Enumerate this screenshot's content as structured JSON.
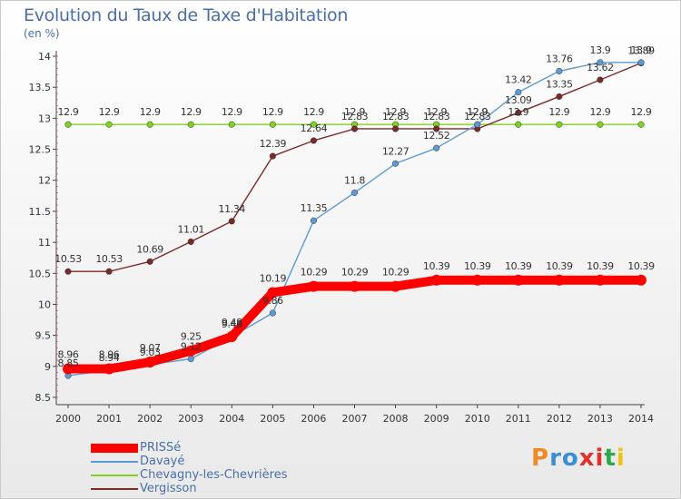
{
  "title": "Evolution du Taux de Taxe d'Habitation",
  "subtitle": "(en %)",
  "logo": {
    "text": "Proxiti",
    "colors": [
      "#f08a24",
      "#3a8fd0",
      "#3a8fd0",
      "#e0302a",
      "#e0302a",
      "#2ea84a",
      "#f4c20d"
    ]
  },
  "chart_data": {
    "type": "line",
    "title": "Evolution du Taux de Taxe d'Habitation",
    "subtitle": "(en %)",
    "xlabel": "",
    "ylabel": "",
    "x": [
      "2000",
      "2001",
      "2002",
      "2003",
      "2004",
      "2005",
      "2006",
      "2007",
      "2008",
      "2009",
      "2010",
      "2011",
      "2012",
      "2013",
      "2014"
    ],
    "ylim": [
      8.5,
      14
    ],
    "yticks": [
      "8.5",
      "9",
      "9.5",
      "10",
      "10.5",
      "11",
      "11.5",
      "12",
      "12.5",
      "13",
      "13.5",
      "14"
    ],
    "grid": false,
    "legend_position": "bottom-left",
    "series": [
      {
        "name": "PRISSé",
        "color": "#ff0000",
        "style": "thick",
        "values": [
          8.96,
          8.96,
          9.07,
          9.25,
          9.48,
          10.19,
          10.29,
          10.29,
          10.29,
          10.39,
          10.39,
          10.39,
          10.39,
          10.39,
          10.39
        ],
        "labels": [
          "8.96",
          "8.96",
          "9.07",
          "9.25",
          "9.48",
          "10.19",
          "10.29",
          "10.29",
          "10.29",
          "10.39",
          "10.39",
          "10.39",
          "10.39",
          "10.39",
          "10.39"
        ]
      },
      {
        "name": "Davayé",
        "color": "#5b9bd5",
        "style": "thin",
        "values": [
          8.85,
          8.94,
          9.03,
          9.12,
          9.48,
          9.86,
          11.35,
          11.8,
          12.27,
          12.52,
          12.9,
          13.42,
          13.76,
          13.9,
          13.9
        ],
        "labels": [
          "8.85",
          "8.94",
          "9.03",
          "9.12",
          "9.48",
          "9.86",
          "11.35",
          "11.8",
          "12.27",
          "12.52",
          "12.9",
          "13.42",
          "13.76",
          "13.9",
          "13.9"
        ]
      },
      {
        "name": "Chevagny-les-Chevrières",
        "color": "#7ed321",
        "style": "thin",
        "values": [
          12.9,
          12.9,
          12.9,
          12.9,
          12.9,
          12.9,
          12.9,
          12.9,
          12.9,
          12.9,
          12.9,
          12.9,
          12.9,
          12.9,
          12.9
        ],
        "labels": [
          "12.9",
          "12.9",
          "12.9",
          "12.9",
          "12.9",
          "12.9",
          "12.9",
          "12.9",
          "12.9",
          "12.9",
          "12.9",
          "12.9",
          "12.9",
          "12.9",
          "12.9"
        ]
      },
      {
        "name": "Vergisson",
        "color": "#7b2a2a",
        "style": "thin",
        "values": [
          10.53,
          10.53,
          10.69,
          11.01,
          11.34,
          12.39,
          12.64,
          12.83,
          12.83,
          12.83,
          12.83,
          13.09,
          13.35,
          13.62,
          13.89
        ],
        "labels": [
          "10.53",
          "10.53",
          "10.69",
          "11.01",
          "11.34",
          "12.39",
          "12.64",
          "12.83",
          "12.83",
          "12.83",
          "12.83",
          "13.09",
          "13.35",
          "13.62",
          "13.89"
        ]
      }
    ]
  }
}
